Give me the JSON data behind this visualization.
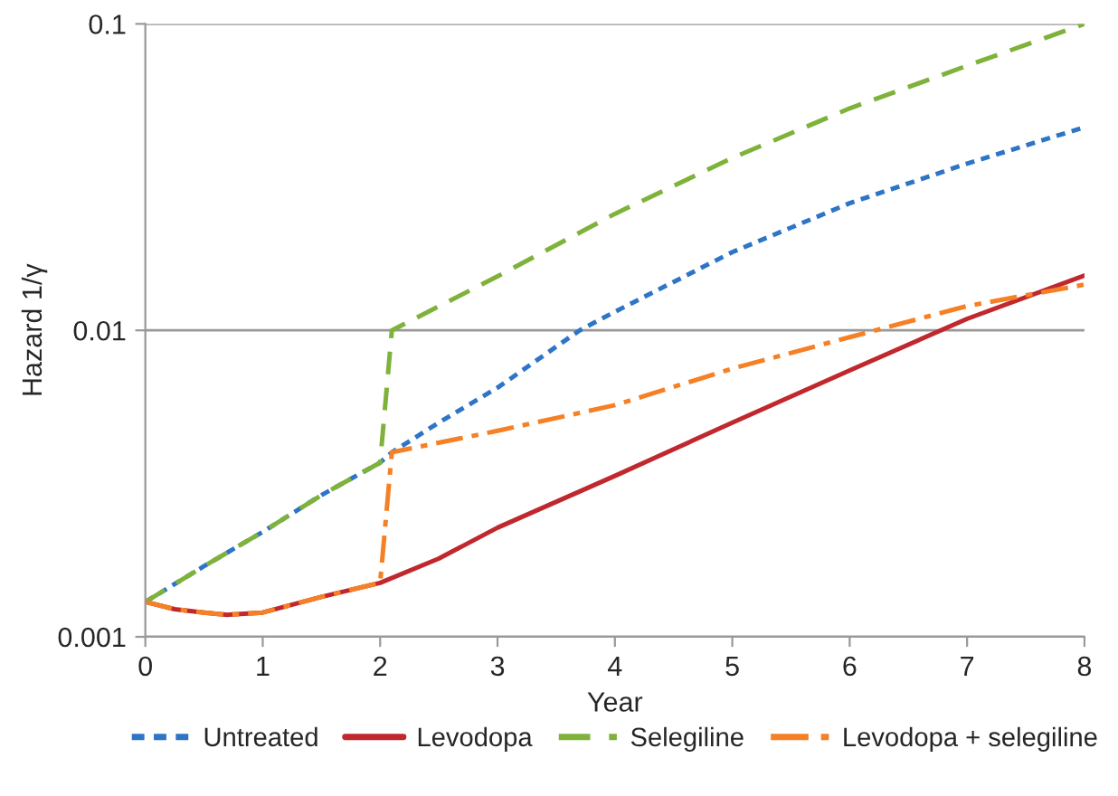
{
  "chart_data": {
    "type": "line",
    "xlabel": "Year",
    "ylabel": "Hazard 1/γ",
    "log": "y",
    "grid": "y",
    "legend": "bottom",
    "marker": "none",
    "xlim": [
      0,
      8
    ],
    "xticks": [
      0,
      1,
      2,
      3,
      4,
      5,
      6,
      7,
      8
    ],
    "ylim": [
      0.001,
      0.1
    ],
    "yticks": [
      0.001,
      0.01,
      0.1
    ],
    "series": [
      {
        "name": "Untreated",
        "color": "#2e75c6",
        "line_style": "dotted",
        "x": [
          0,
          0.5,
          1,
          1.5,
          2,
          2.1,
          2.5,
          3,
          3.7,
          4,
          5,
          6,
          7,
          8
        ],
        "values": [
          0.0013,
          0.0017,
          0.0022,
          0.0029,
          0.0037,
          0.004,
          0.005,
          0.0065,
          0.01,
          0.0115,
          0.018,
          0.026,
          0.035,
          0.046
        ]
      },
      {
        "name": "Levodopa",
        "color": "#c0282e",
        "line_style": "solid",
        "x": [
          0,
          0.25,
          0.5,
          0.7,
          1,
          1.5,
          2,
          2.5,
          3,
          4,
          5,
          6,
          7,
          8
        ],
        "values": [
          0.0013,
          0.00123,
          0.0012,
          0.00118,
          0.0012,
          0.00135,
          0.0015,
          0.0018,
          0.00227,
          0.00335,
          0.005,
          0.0074,
          0.0109,
          0.0151
        ]
      },
      {
        "name": "Selegiline",
        "color": "#7fb23a",
        "line_style": "dashed",
        "x": [
          0,
          0.5,
          1,
          1.5,
          2,
          2.1,
          3,
          4,
          5,
          6,
          7,
          8
        ],
        "values": [
          0.0013,
          0.0017,
          0.0022,
          0.0029,
          0.0037,
          0.01,
          0.015,
          0.024,
          0.0365,
          0.053,
          0.073,
          0.1
        ]
      },
      {
        "name": "Levodopa + selegiline",
        "color": "#f58025",
        "line_style": "dashdot",
        "x": [
          0,
          0.25,
          0.5,
          0.7,
          1,
          1.5,
          2,
          2.1,
          3,
          4,
          5,
          6,
          7,
          8
        ],
        "values": [
          0.0013,
          0.00123,
          0.0012,
          0.00118,
          0.0012,
          0.00135,
          0.0015,
          0.004,
          0.0047,
          0.0057,
          0.0075,
          0.0095,
          0.012,
          0.0141
        ]
      }
    ]
  }
}
